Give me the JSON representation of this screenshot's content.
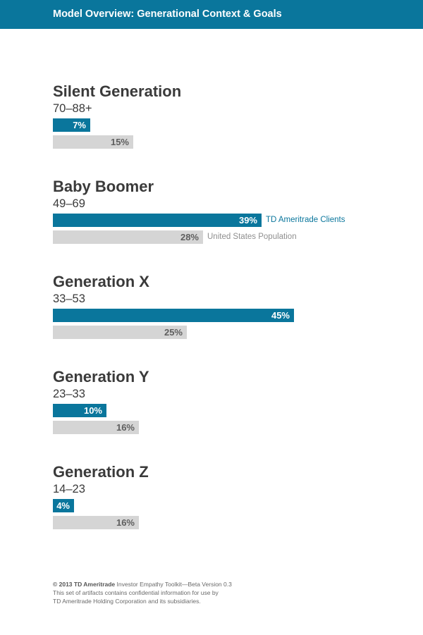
{
  "header": {
    "title": "Model Overview: Generational Context & Goals",
    "color": "#0a769c"
  },
  "colors": {
    "client_bar": "#0a769c",
    "population_bar": "#d5d5d5"
  },
  "legend": {
    "client": "TD Ameritrade Clients",
    "population": "United States Population"
  },
  "chart_data": {
    "type": "bar",
    "orientation": "horizontal",
    "series": [
      {
        "name": "TD Ameritrade Clients",
        "values": [
          7,
          39,
          45,
          10,
          4
        ]
      },
      {
        "name": "United States Population",
        "values": [
          15,
          28,
          25,
          16,
          16
        ]
      }
    ],
    "categories": [
      "Silent Generation",
      "Baby Boomer",
      "Generation X",
      "Generation Y",
      "Generation Z"
    ],
    "groups": [
      {
        "name": "Silent Generation",
        "range": "70–88+",
        "client": 7,
        "client_label": "7%",
        "population": 15,
        "population_label": "15%"
      },
      {
        "name": "Baby Boomer",
        "range": "49–69",
        "client": 39,
        "client_label": "39%",
        "population": 28,
        "population_label": "28%"
      },
      {
        "name": "Generation X",
        "range": "33–53",
        "client": 45,
        "client_label": "45%",
        "population": 25,
        "population_label": "25%"
      },
      {
        "name": "Generation Y",
        "range": "23–33",
        "client": 10,
        "client_label": "10%",
        "population": 16,
        "population_label": "16%"
      },
      {
        "name": "Generation Z",
        "range": "14–23",
        "client": 4,
        "client_label": "4%",
        "population": 16,
        "population_label": "16%"
      }
    ],
    "legend_group": "Baby Boomer"
  },
  "footer": {
    "copyright_bold": "© 2013 TD Ameritrade",
    "line1": " Investor Empathy Toolkit—Beta Version 0.3",
    "line2": "This set of artifacts contains confidential information for use by",
    "line3": "TD Ameritrade Holding Corporation and its subsidiaries."
  }
}
